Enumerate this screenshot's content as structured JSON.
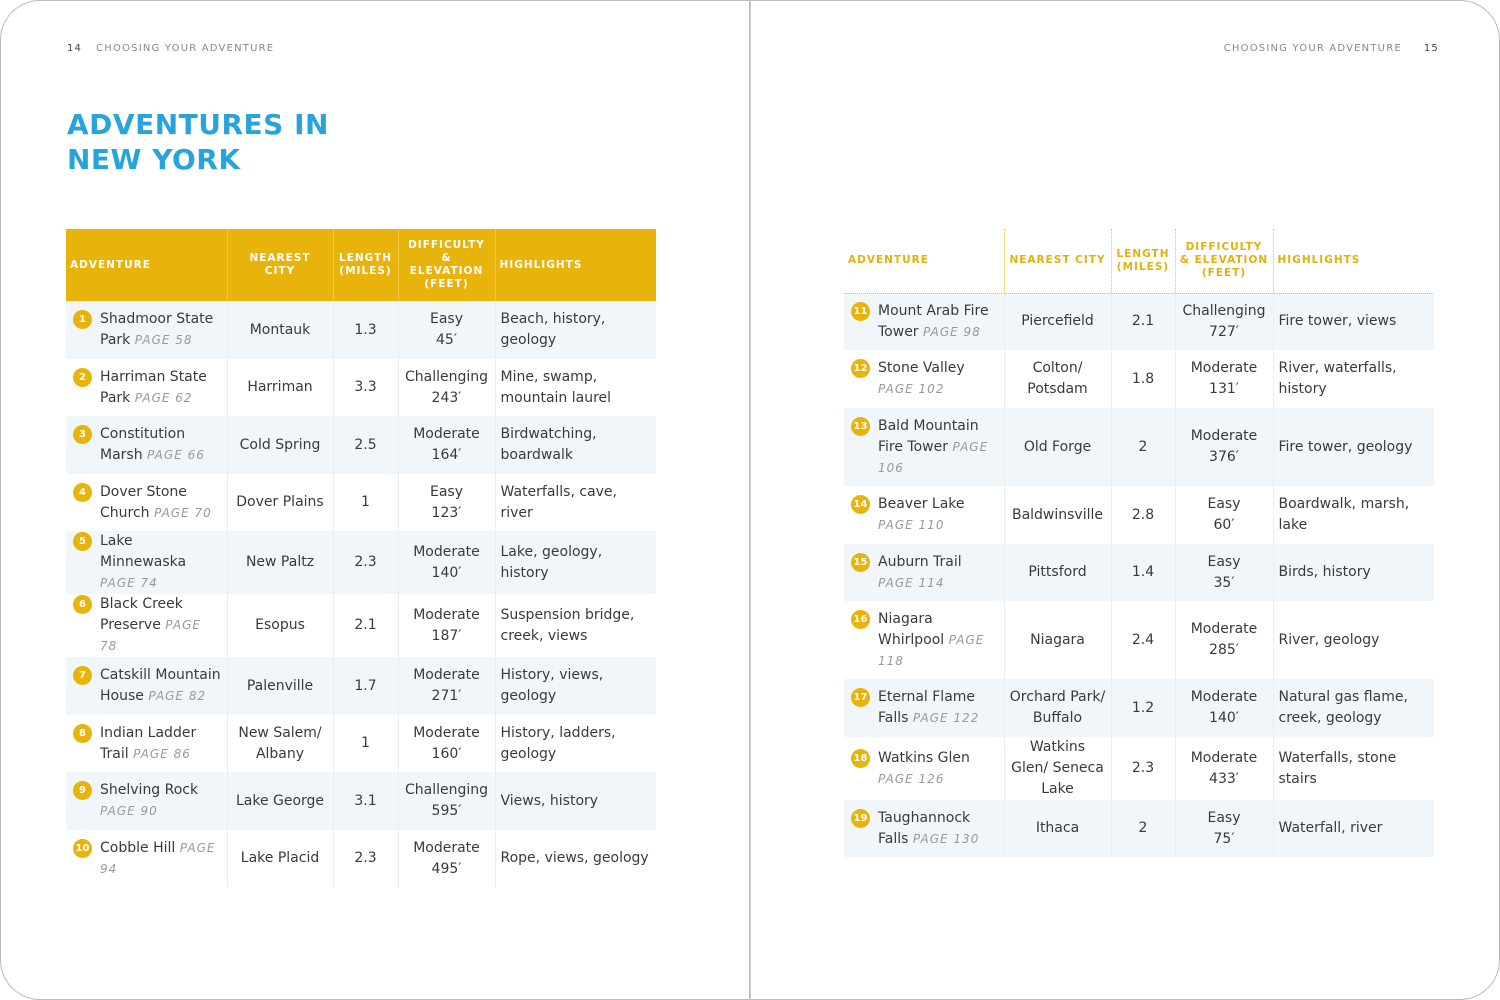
{
  "left": {
    "page_number": "14",
    "running_head": "CHOOSING YOUR ADVENTURE",
    "title_line1": "ADVENTURES IN",
    "title_line2": "NEW YORK"
  },
  "right": {
    "page_number": "15",
    "running_head": "CHOOSING YOUR ADVENTURE"
  },
  "colors": {
    "title": "#29a3dc",
    "accent": "#e8b30b",
    "row_shade": "#f0f6fa"
  },
  "headers": [
    "ADVENTURE",
    "NEAREST CITY",
    "LENGTH (MILES)",
    "DIFFICULTY & ELEVATION (FEET)",
    "HIGHLIGHTS"
  ],
  "left_rows": [
    {
      "n": "1",
      "name": "Shadmoor State Park",
      "page": "PAGE 58",
      "city": "Montauk",
      "length": "1.3",
      "difficulty": "Easy",
      "elevation": "45′",
      "highlights": "Beach, history, geology"
    },
    {
      "n": "2",
      "name": "Harriman State Park",
      "page": "PAGE 62",
      "city": "Harriman",
      "length": "3.3",
      "difficulty": "Challenging",
      "elevation": "243′",
      "highlights": "Mine, swamp, mountain laurel"
    },
    {
      "n": "3",
      "name": "Constitution Marsh",
      "page": "PAGE 66",
      "city": "Cold Spring",
      "length": "2.5",
      "difficulty": "Moderate",
      "elevation": "164′",
      "highlights": "Birdwatching, boardwalk"
    },
    {
      "n": "4",
      "name": "Dover Stone Church",
      "page": "PAGE 70",
      "city": "Dover Plains",
      "length": "1",
      "difficulty": "Easy",
      "elevation": "123′",
      "highlights": "Waterfalls, cave, river"
    },
    {
      "n": "5",
      "name": "Lake Minnewaska",
      "page": "PAGE 74",
      "city": "New Paltz",
      "length": "2.3",
      "difficulty": "Moderate",
      "elevation": "140′",
      "highlights": "Lake, geology, history"
    },
    {
      "n": "6",
      "name": "Black Creek Preserve",
      "page": "PAGE 78",
      "city": "Esopus",
      "length": "2.1",
      "difficulty": "Moderate",
      "elevation": "187′",
      "highlights": "Suspension bridge, creek, views"
    },
    {
      "n": "7",
      "name": "Catskill Mountain House",
      "page": "PAGE 82",
      "city": "Palenville",
      "length": "1.7",
      "difficulty": "Moderate",
      "elevation": "271′",
      "highlights": "History, views, geology"
    },
    {
      "n": "8",
      "name": "Indian Ladder Trail",
      "page": "PAGE 86",
      "city": "New Salem/ Albany",
      "length": "1",
      "difficulty": "Moderate",
      "elevation": "160′",
      "highlights": "History, ladders, geology"
    },
    {
      "n": "9",
      "name": "Shelving Rock",
      "page": "PAGE 90",
      "city": "Lake George",
      "length": "3.1",
      "difficulty": "Challenging",
      "elevation": "595′",
      "highlights": "Views, history"
    },
    {
      "n": "10",
      "name": "Cobble Hill",
      "page": "PAGE 94",
      "city": "Lake Placid",
      "length": "2.3",
      "difficulty": "Moderate",
      "elevation": "495′",
      "highlights": "Rope, views, geology"
    }
  ],
  "right_rows": [
    {
      "n": "11",
      "name": "Mount Arab Fire Tower",
      "page": "PAGE 98",
      "city": "Piercefield",
      "length": "2.1",
      "difficulty": "Challenging",
      "elevation": "727′",
      "highlights": "Fire tower, views"
    },
    {
      "n": "12",
      "name": "Stone Valley",
      "page": "PAGE 102",
      "city": "Colton/ Potsdam",
      "length": "1.8",
      "difficulty": "Moderate",
      "elevation": "131′",
      "highlights": "River, waterfalls, history"
    },
    {
      "n": "13",
      "name": "Bald Mountain Fire Tower",
      "page": "PAGE 106",
      "city": "Old Forge",
      "length": "2",
      "difficulty": "Moderate",
      "elevation": "376′",
      "highlights": "Fire tower, geology"
    },
    {
      "n": "14",
      "name": "Beaver Lake",
      "page": "PAGE 110",
      "city": "Baldwinsville",
      "length": "2.8",
      "difficulty": "Easy",
      "elevation": "60′",
      "highlights": "Boardwalk, marsh, lake"
    },
    {
      "n": "15",
      "name": "Auburn Trail",
      "page": "PAGE 114",
      "city": "Pittsford",
      "length": "1.4",
      "difficulty": "Easy",
      "elevation": "35′",
      "highlights": "Birds, history"
    },
    {
      "n": "16",
      "name": "Niagara Whirlpool",
      "page": "PAGE 118",
      "city": "Niagara",
      "length": "2.4",
      "difficulty": "Moderate",
      "elevation": "285′",
      "highlights": "River, geology"
    },
    {
      "n": "17",
      "name": "Eternal Flame Falls",
      "page": "PAGE 122",
      "city": "Orchard Park/ Buffalo",
      "length": "1.2",
      "difficulty": "Moderate",
      "elevation": "140′",
      "highlights": "Natural gas flame, creek, geology"
    },
    {
      "n": "18",
      "name": "Watkins Glen",
      "page": "PAGE 126",
      "city": "Watkins Glen/ Seneca Lake",
      "length": "2.3",
      "difficulty": "Moderate",
      "elevation": "433′",
      "highlights": "Waterfalls, stone stairs"
    },
    {
      "n": "19",
      "name": "Taughannock Falls",
      "page": "PAGE 130",
      "city": "Ithaca",
      "length": "2",
      "difficulty": "Easy",
      "elevation": "75′",
      "highlights": "Waterfall, river"
    }
  ]
}
